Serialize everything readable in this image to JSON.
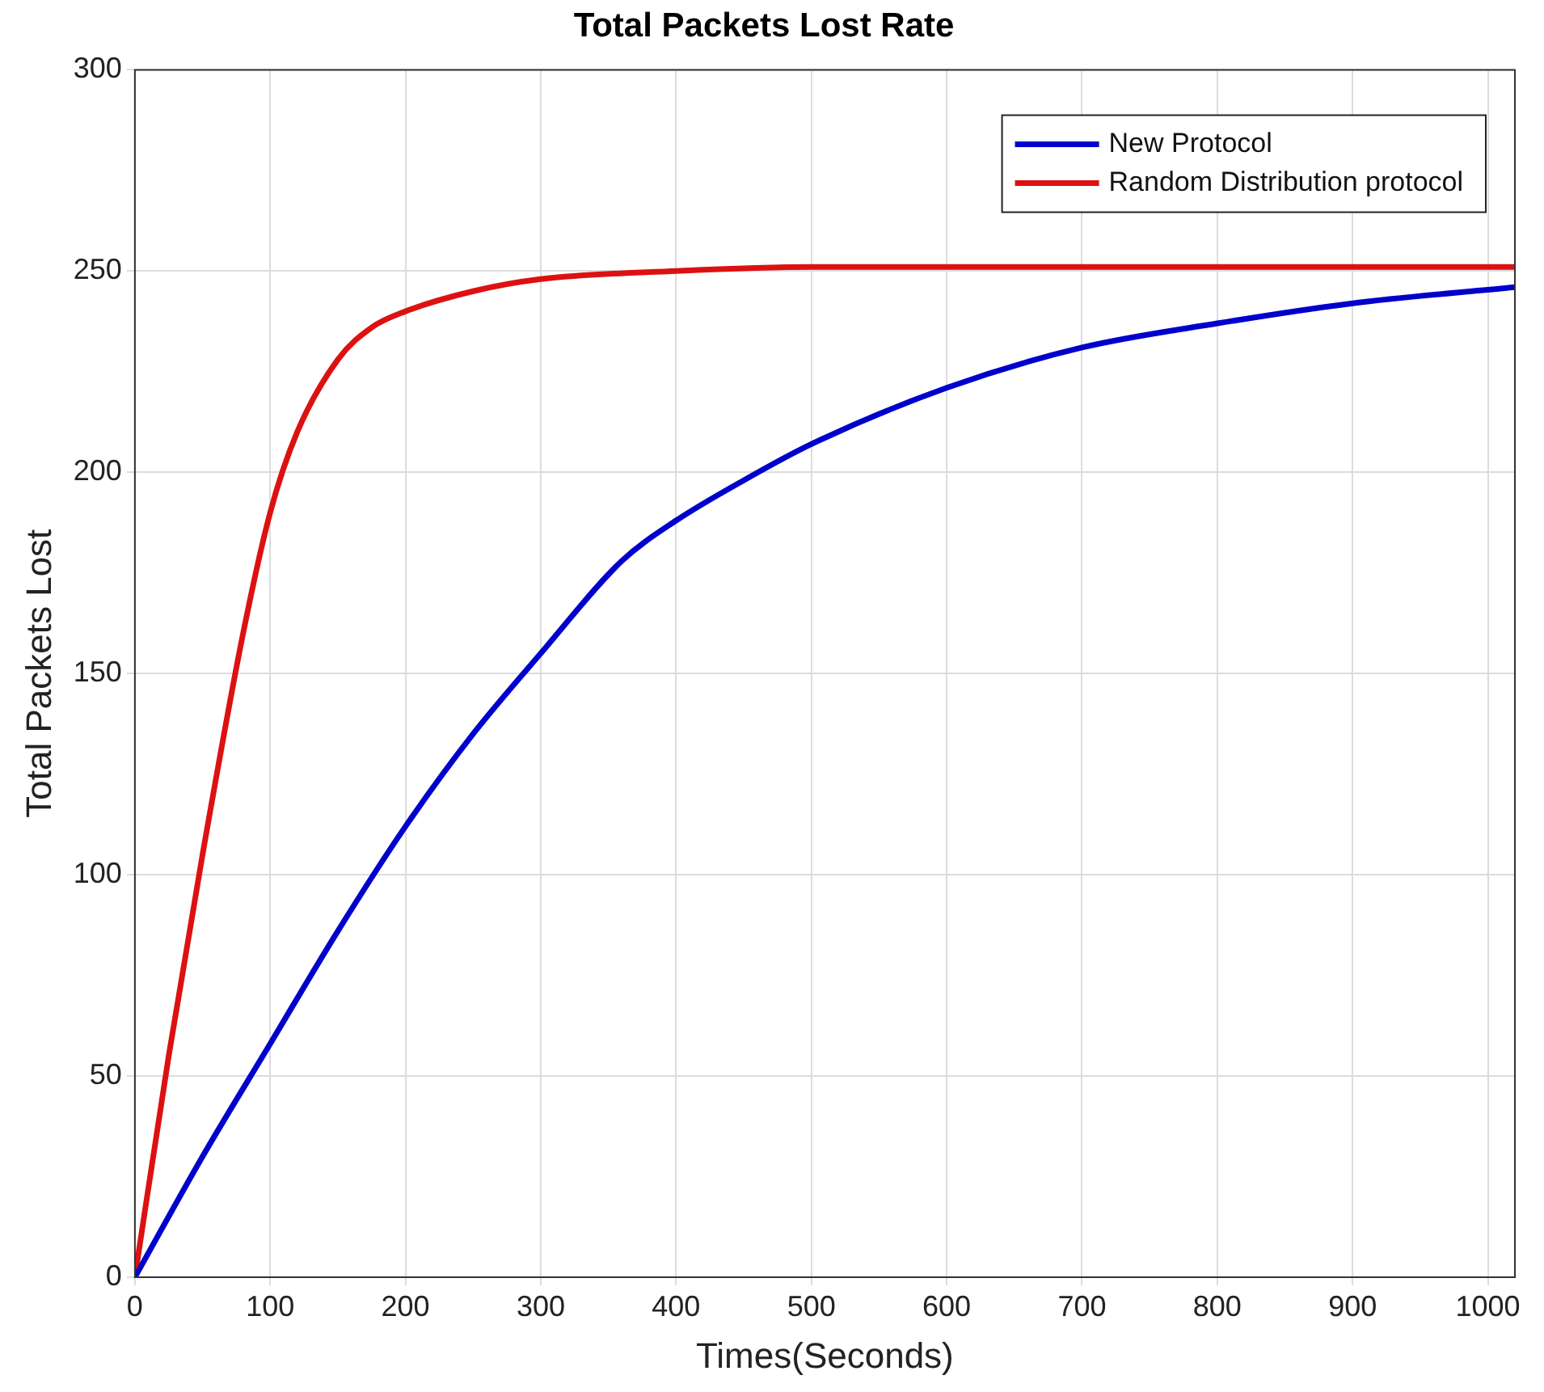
{
  "chart_data": {
    "type": "line",
    "title": "Total Packets Lost Rate",
    "xlabel": "Times(Seconds)",
    "ylabel": "Total Packets Lost",
    "xlim": [
      0,
      1020
    ],
    "xticks": [
      0,
      100,
      200,
      300,
      400,
      500,
      600,
      700,
      800,
      900,
      1000
    ],
    "ylim": [
      0,
      300
    ],
    "yticks": [
      0,
      50,
      100,
      150,
      200,
      250,
      300
    ],
    "grid": true,
    "legend": "top right",
    "marker": "none",
    "line_style": "solid",
    "series": [
      {
        "name": "New Protocol",
        "color": "#0000cc",
        "x": [
          0,
          50,
          100,
          150,
          200,
          250,
          300,
          360,
          400,
          450,
          500,
          600,
          700,
          800,
          900,
          1020
        ],
        "values": [
          0,
          30,
          58,
          86,
          112,
          135,
          155,
          178,
          188,
          198,
          207,
          221,
          231,
          237,
          242,
          246
        ]
      },
      {
        "name": "Random Distribution protocol",
        "color": "#dd1111",
        "x": [
          0,
          25,
          50,
          80,
          100,
          120,
          150,
          175,
          200,
          250,
          300,
          400,
          500,
          700,
          1020
        ],
        "values": [
          0,
          55,
          105,
          160,
          190,
          210,
          228,
          236,
          240,
          245,
          248,
          250,
          251,
          251,
          251
        ]
      }
    ]
  }
}
